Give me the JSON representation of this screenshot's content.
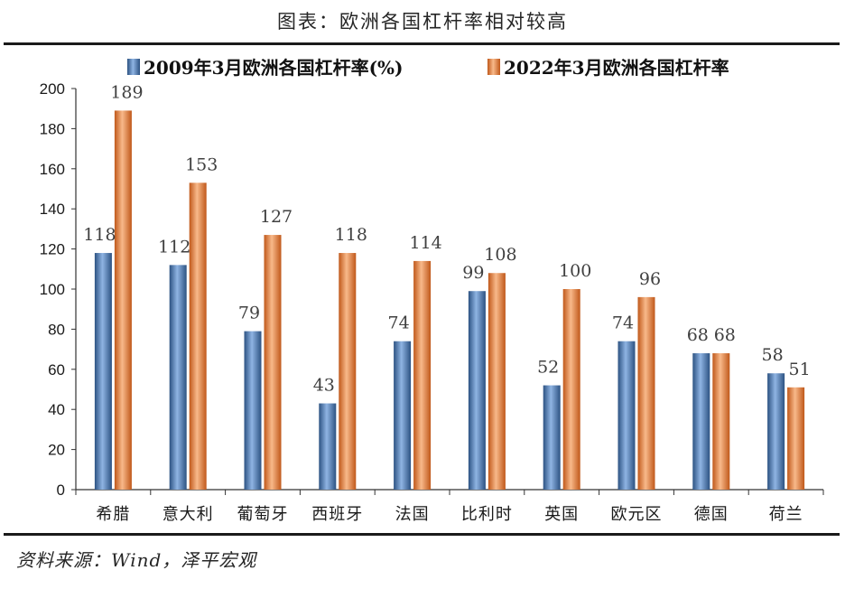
{
  "header": {
    "title": "图表：欧洲各国杠杆率相对较高"
  },
  "footer": {
    "source": "资料来源：Wind，泽平宏观"
  },
  "colors": {
    "series1_main": "#4f81bd",
    "series1_dark": "#2c5282",
    "series1_light": "#8fb4e3",
    "series2_main": "#f0883a",
    "series2_dark": "#c0581a",
    "series2_light": "#f8b98a"
  },
  "chart_data": {
    "type": "bar",
    "title": "",
    "xlabel": "",
    "ylabel": "",
    "categories": [
      "希腊",
      "意大利",
      "葡萄牙",
      "西班牙",
      "法国",
      "比利时",
      "英国",
      "欧元区",
      "德国",
      "荷兰"
    ],
    "series": [
      {
        "name": "2009年3月欧洲各国杠杆率(%)",
        "values": [
          118,
          112,
          79,
          43,
          74,
          99,
          52,
          74,
          68,
          58
        ]
      },
      {
        "name": "2022年3月欧洲各国杠杆率",
        "values": [
          189,
          153,
          127,
          118,
          114,
          108,
          100,
          96,
          68,
          51
        ]
      }
    ],
    "ylim": [
      0,
      200
    ],
    "yticks": [
      0,
      20,
      40,
      60,
      80,
      100,
      120,
      140,
      160,
      180,
      200
    ],
    "grid": false,
    "legend": "top"
  }
}
